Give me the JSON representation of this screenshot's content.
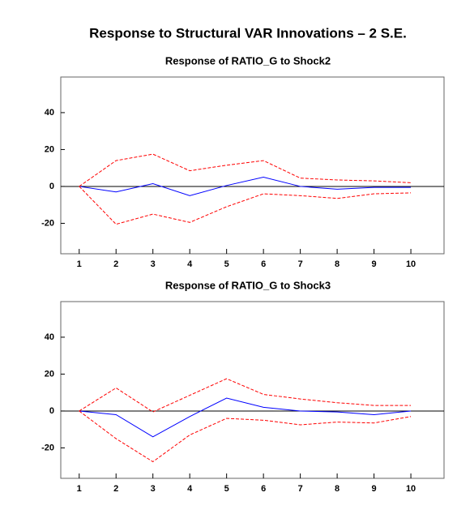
{
  "title": "Response to Structural VAR Innovations – 2 S.E.",
  "chart_data": [
    {
      "type": "line",
      "title": "Response of RATIO_G to Shock2",
      "x": [
        1,
        2,
        3,
        4,
        5,
        6,
        7,
        8,
        9,
        10
      ],
      "xlim": [
        0.5,
        10.9
      ],
      "xticks": [
        1,
        2,
        3,
        4,
        5,
        6,
        7,
        8,
        9,
        10
      ],
      "ylim": [
        -36.5,
        59.3
      ],
      "yticks": [
        -20,
        0,
        20,
        40
      ],
      "series": [
        {
          "color": "#0000ff",
          "style": "solid",
          "values": [
            0,
            -3,
            1.5,
            -5,
            0.5,
            5,
            0,
            -1.5,
            -0.5,
            -0.5
          ]
        },
        {
          "color": "#ff0000",
          "style": "dashed",
          "values": [
            0,
            14,
            17.5,
            8.5,
            11.5,
            14,
            4.5,
            3.5,
            3,
            2
          ]
        },
        {
          "color": "#ff0000",
          "style": "dashed",
          "values": [
            0,
            -20.5,
            -15,
            -19.5,
            -11,
            -4,
            -5,
            -6.5,
            -4,
            -3.5
          ]
        }
      ]
    },
    {
      "type": "line",
      "title": "Response of RATIO_G to Shock3",
      "x": [
        1,
        2,
        3,
        4,
        5,
        6,
        7,
        8,
        9,
        10
      ],
      "xlim": [
        0.5,
        10.9
      ],
      "xticks": [
        1,
        2,
        3,
        4,
        5,
        6,
        7,
        8,
        9,
        10
      ],
      "ylim": [
        -36.5,
        59.3
      ],
      "yticks": [
        -20,
        0,
        20,
        40
      ],
      "series": [
        {
          "color": "#0000ff",
          "style": "solid",
          "values": [
            0,
            -2,
            -14,
            -3,
            7,
            2,
            0,
            -0.5,
            -2,
            0
          ]
        },
        {
          "color": "#ff0000",
          "style": "dashed",
          "values": [
            0,
            12.5,
            -0.5,
            8.5,
            17.5,
            9,
            6.5,
            4.5,
            3,
            3
          ]
        },
        {
          "color": "#ff0000",
          "style": "dashed",
          "values": [
            0,
            -15,
            -27.5,
            -13,
            -4,
            -5,
            -7.5,
            -6,
            -6.5,
            -3
          ]
        }
      ]
    }
  ]
}
